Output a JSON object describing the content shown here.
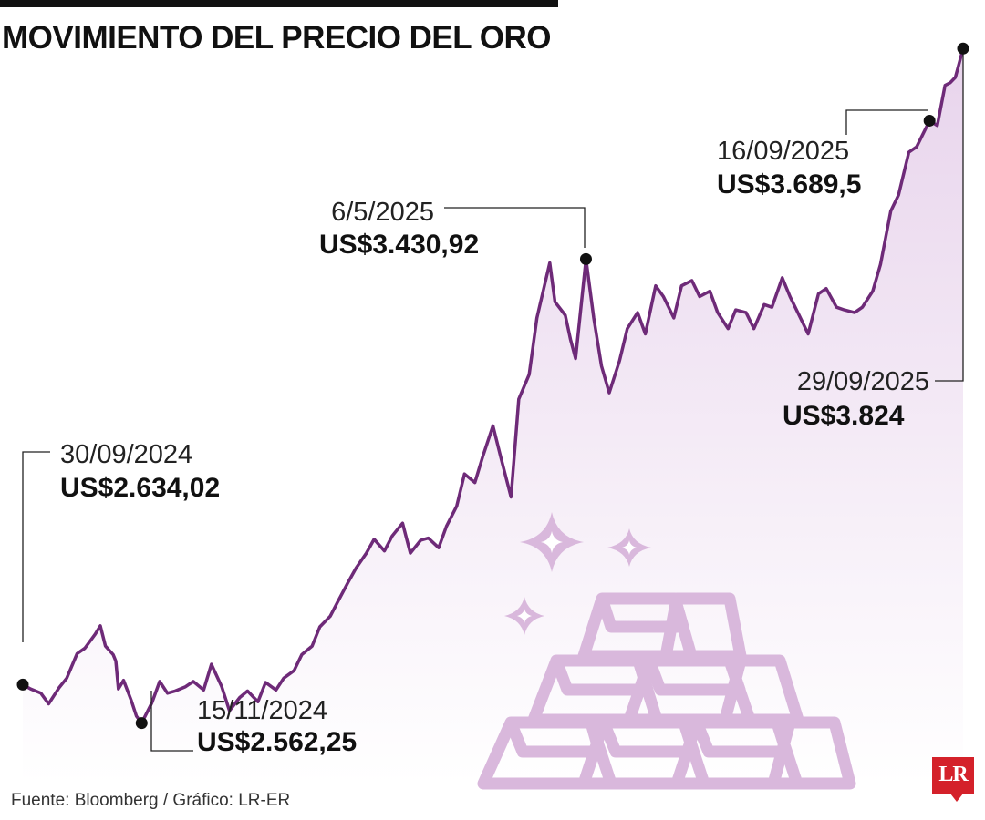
{
  "title": "MOVIMIENTO DEL PRECIO DEL ORO",
  "source": "Fuente: Bloomberg / Gráfico: LR-ER",
  "logo_text": "LR",
  "colors": {
    "line": "#6e2a78",
    "area_top": "#e8d4ec",
    "area_bottom": "#ffffff",
    "illustration": "#d9b8dc",
    "logo": "#d4212a"
  },
  "icons": [
    "gold-bars-icon",
    "sparkle-icon"
  ],
  "chart_data": {
    "type": "area",
    "xlim": [
      "2024-09-30",
      "2025-09-29"
    ],
    "ylim": [
      2500,
      3850
    ],
    "grid": false,
    "annotations": [
      {
        "date": "30/09/2024",
        "price": "US$2.634,02"
      },
      {
        "date": "15/11/2024",
        "price": "US$2.562,25"
      },
      {
        "date": "6/5/2025",
        "price": "US$3.430,92"
      },
      {
        "date": "16/09/2025",
        "price": "US$3.689,5"
      },
      {
        "date": "29/09/2025",
        "price": "US$3.824"
      }
    ],
    "series": [
      {
        "values": [
          [
            "2024-09-30",
            2634
          ],
          [
            "2024-10-03",
            2626
          ],
          [
            "2024-10-07",
            2618
          ],
          [
            "2024-10-10",
            2598
          ],
          [
            "2024-10-14",
            2628
          ],
          [
            "2024-10-17",
            2646
          ],
          [
            "2024-10-21",
            2692
          ],
          [
            "2024-10-24",
            2702
          ],
          [
            "2024-10-28",
            2728
          ],
          [
            "2024-10-30",
            2744
          ],
          [
            "2024-11-01",
            2706
          ],
          [
            "2024-11-04",
            2690
          ],
          [
            "2024-11-05",
            2678
          ],
          [
            "2024-11-06",
            2626
          ],
          [
            "2024-11-08",
            2642
          ],
          [
            "2024-11-11",
            2604
          ],
          [
            "2024-11-13",
            2575
          ],
          [
            "2024-11-15",
            2562
          ],
          [
            "2024-11-19",
            2600
          ],
          [
            "2024-11-22",
            2640
          ],
          [
            "2024-11-25",
            2618
          ],
          [
            "2024-11-28",
            2622
          ],
          [
            "2024-12-02",
            2630
          ],
          [
            "2024-12-05",
            2640
          ],
          [
            "2024-12-09",
            2624
          ],
          [
            "2024-12-12",
            2672
          ],
          [
            "2024-12-16",
            2630
          ],
          [
            "2024-12-19",
            2585
          ],
          [
            "2024-12-23",
            2610
          ],
          [
            "2024-12-26",
            2622
          ],
          [
            "2024-12-30",
            2602
          ],
          [
            "2025-01-02",
            2638
          ],
          [
            "2025-01-06",
            2624
          ],
          [
            "2025-01-09",
            2646
          ],
          [
            "2025-01-13",
            2660
          ],
          [
            "2025-01-16",
            2690
          ],
          [
            "2025-01-20",
            2706
          ],
          [
            "2025-01-23",
            2742
          ],
          [
            "2025-01-27",
            2762
          ],
          [
            "2025-01-30",
            2790
          ],
          [
            "2025-02-03",
            2826
          ],
          [
            "2025-02-06",
            2852
          ],
          [
            "2025-02-10",
            2880
          ],
          [
            "2025-02-13",
            2906
          ],
          [
            "2025-02-17",
            2884
          ],
          [
            "2025-02-20",
            2912
          ],
          [
            "2025-02-24",
            2936
          ],
          [
            "2025-02-27",
            2880
          ],
          [
            "2025-03-03",
            2904
          ],
          [
            "2025-03-06",
            2908
          ],
          [
            "2025-03-10",
            2890
          ],
          [
            "2025-03-13",
            2930
          ],
          [
            "2025-03-17",
            2968
          ],
          [
            "2025-03-20",
            3028
          ],
          [
            "2025-03-24",
            3012
          ],
          [
            "2025-03-27",
            3060
          ],
          [
            "2025-03-31",
            3118
          ],
          [
            "2025-04-03",
            3060
          ],
          [
            "2025-04-07",
            2985
          ],
          [
            "2025-04-10",
            3168
          ],
          [
            "2025-04-14",
            3214
          ],
          [
            "2025-04-17",
            3320
          ],
          [
            "2025-04-22",
            3423
          ],
          [
            "2025-04-24",
            3350
          ],
          [
            "2025-04-28",
            3325
          ],
          [
            "2025-04-30",
            3280
          ],
          [
            "2025-05-02",
            3244
          ],
          [
            "2025-05-06",
            3430
          ],
          [
            "2025-05-09",
            3320
          ],
          [
            "2025-05-12",
            3230
          ],
          [
            "2025-05-15",
            3180
          ],
          [
            "2025-05-19",
            3240
          ],
          [
            "2025-05-22",
            3300
          ],
          [
            "2025-05-26",
            3330
          ],
          [
            "2025-05-29",
            3290
          ],
          [
            "2025-06-02",
            3380
          ],
          [
            "2025-06-05",
            3360
          ],
          [
            "2025-06-09",
            3320
          ],
          [
            "2025-06-12",
            3380
          ],
          [
            "2025-06-16",
            3390
          ],
          [
            "2025-06-19",
            3360
          ],
          [
            "2025-06-23",
            3370
          ],
          [
            "2025-06-26",
            3330
          ],
          [
            "2025-06-30",
            3300
          ],
          [
            "2025-07-03",
            3335
          ],
          [
            "2025-07-07",
            3330
          ],
          [
            "2025-07-10",
            3300
          ],
          [
            "2025-07-14",
            3345
          ],
          [
            "2025-07-17",
            3340
          ],
          [
            "2025-07-21",
            3395
          ],
          [
            "2025-07-24",
            3360
          ],
          [
            "2025-07-28",
            3320
          ],
          [
            "2025-07-31",
            3290
          ],
          [
            "2025-08-04",
            3365
          ],
          [
            "2025-08-07",
            3375
          ],
          [
            "2025-08-11",
            3340
          ],
          [
            "2025-08-14",
            3335
          ],
          [
            "2025-08-18",
            3330
          ],
          [
            "2025-08-21",
            3340
          ],
          [
            "2025-08-25",
            3370
          ],
          [
            "2025-08-28",
            3420
          ],
          [
            "2025-09-01",
            3520
          ],
          [
            "2025-09-04",
            3550
          ],
          [
            "2025-09-08",
            3630
          ],
          [
            "2025-09-11",
            3640
          ],
          [
            "2025-09-16",
            3689
          ],
          [
            "2025-09-19",
            3680
          ],
          [
            "2025-09-22",
            3755
          ],
          [
            "2025-09-24",
            3760
          ],
          [
            "2025-09-26",
            3770
          ],
          [
            "2025-09-29",
            3824
          ]
        ]
      }
    ]
  }
}
